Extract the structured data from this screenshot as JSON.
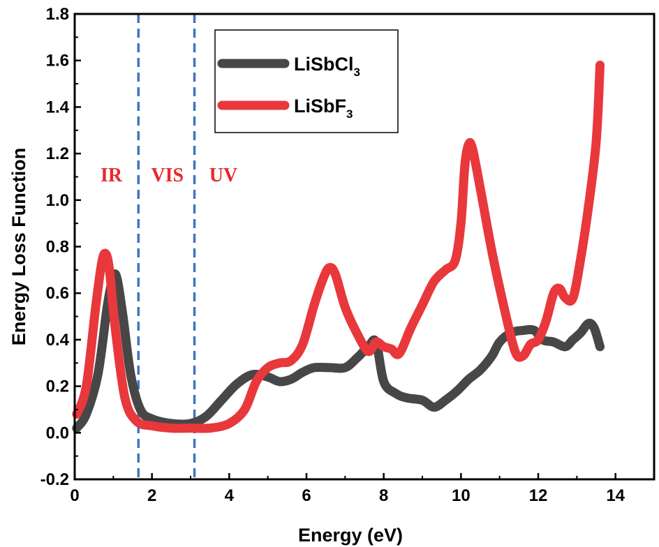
{
  "chart_data": {
    "type": "line",
    "title": "",
    "xlabel": "Energy (eV)",
    "ylabel": "Energy Loss Function",
    "xlim": [
      0,
      15
    ],
    "ylim": [
      -0.2,
      1.8
    ],
    "xticks": [
      0,
      2,
      4,
      6,
      8,
      10,
      12,
      14
    ],
    "xtick_labels": [
      "0",
      "2",
      "4",
      "6",
      "8",
      "10",
      "12",
      "14"
    ],
    "yticks": [
      -0.2,
      0.0,
      0.2,
      0.4,
      0.6,
      0.8,
      1.0,
      1.2,
      1.4,
      1.6,
      1.8
    ],
    "ytick_labels": [
      "-0.2",
      "0.0",
      "0.2",
      "0.4",
      "0.6",
      "0.8",
      "1.0",
      "1.2",
      "1.4",
      "1.6",
      "1.8"
    ],
    "legend_position": "top-center",
    "grid": false,
    "region_boundaries": [
      1.65,
      3.1
    ],
    "region_labels": [
      {
        "text": "IR",
        "x": 0.95,
        "y": 1.08
      },
      {
        "text": "VIS",
        "x": 2.4,
        "y": 1.08
      },
      {
        "text": "UV",
        "x": 3.85,
        "y": 1.08
      }
    ],
    "region_label_color": "#e8282b",
    "boundary_color": "#4472c4",
    "series": [
      {
        "name": "LiSbCl",
        "subscript": "3",
        "color": "#474747",
        "x": [
          0.05,
          0.3,
          0.6,
          0.85,
          1.0,
          1.1,
          1.25,
          1.45,
          1.7,
          2.0,
          2.5,
          3.0,
          3.4,
          3.8,
          4.2,
          4.6,
          5.0,
          5.3,
          5.6,
          5.9,
          6.2,
          6.6,
          7.0,
          7.3,
          7.6,
          7.8,
          8.0,
          8.3,
          8.6,
          9.0,
          9.3,
          9.6,
          9.9,
          10.2,
          10.5,
          10.8,
          11.0,
          11.3,
          11.6,
          11.9,
          12.1,
          12.4,
          12.7,
          12.9,
          13.1,
          13.3,
          13.45,
          13.6
        ],
        "values": [
          0.02,
          0.08,
          0.25,
          0.55,
          0.67,
          0.66,
          0.5,
          0.25,
          0.1,
          0.06,
          0.04,
          0.04,
          0.07,
          0.14,
          0.21,
          0.25,
          0.24,
          0.22,
          0.23,
          0.26,
          0.28,
          0.28,
          0.28,
          0.32,
          0.37,
          0.39,
          0.22,
          0.17,
          0.15,
          0.14,
          0.11,
          0.14,
          0.18,
          0.23,
          0.27,
          0.33,
          0.39,
          0.43,
          0.44,
          0.44,
          0.4,
          0.39,
          0.37,
          0.4,
          0.43,
          0.47,
          0.45,
          0.37
        ]
      },
      {
        "name": "LiSbF",
        "subscript": "3",
        "color": "#e8383b",
        "x": [
          0.05,
          0.3,
          0.55,
          0.7,
          0.8,
          0.9,
          1.05,
          1.3,
          1.6,
          2.0,
          2.5,
          3.0,
          3.5,
          4.0,
          4.4,
          4.7,
          5.0,
          5.3,
          5.6,
          5.9,
          6.2,
          6.45,
          6.6,
          6.75,
          7.0,
          7.3,
          7.6,
          7.8,
          8.0,
          8.2,
          8.4,
          8.7,
          9.0,
          9.3,
          9.6,
          9.85,
          10.0,
          10.1,
          10.2,
          10.3,
          10.5,
          10.8,
          11.1,
          11.4,
          11.6,
          11.8,
          12.0,
          12.2,
          12.4,
          12.55,
          12.7,
          12.9,
          13.1,
          13.3,
          13.5,
          13.6
        ],
        "values": [
          0.08,
          0.2,
          0.55,
          0.73,
          0.77,
          0.7,
          0.45,
          0.15,
          0.05,
          0.03,
          0.02,
          0.02,
          0.02,
          0.04,
          0.1,
          0.22,
          0.28,
          0.3,
          0.31,
          0.38,
          0.55,
          0.67,
          0.71,
          0.68,
          0.54,
          0.43,
          0.35,
          0.39,
          0.37,
          0.36,
          0.34,
          0.45,
          0.55,
          0.65,
          0.7,
          0.74,
          0.9,
          1.15,
          1.24,
          1.22,
          1.05,
          0.78,
          0.55,
          0.35,
          0.33,
          0.38,
          0.4,
          0.48,
          0.6,
          0.62,
          0.58,
          0.58,
          0.75,
          0.97,
          1.25,
          1.58
        ]
      }
    ]
  }
}
